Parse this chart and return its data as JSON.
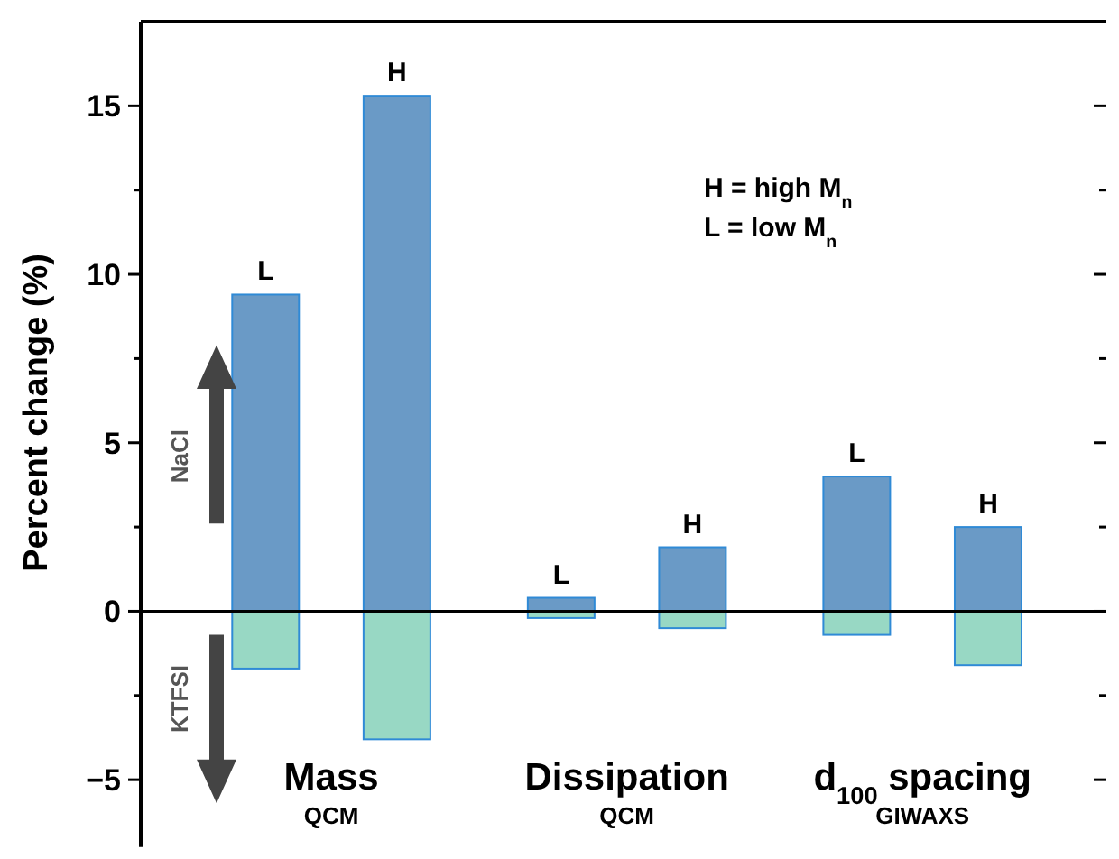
{
  "chart_data": {
    "type": "bar",
    "ylabel": "Percent change (%)",
    "categories": [
      "L",
      "H",
      "L",
      "H",
      "L",
      "H"
    ],
    "series": [
      {
        "name": "NaCl",
        "color": "#6a9ac6",
        "values": [
          9.4,
          15.3,
          0.4,
          1.9,
          4.0,
          2.5
        ]
      },
      {
        "name": "KTFSI",
        "color": "#98d8c4",
        "values": [
          -1.7,
          -3.8,
          -0.2,
          -0.5,
          -0.7,
          -1.6
        ]
      }
    ],
    "stacked": true,
    "ylim": [
      -7,
      17.5
    ],
    "yticks": [
      -5,
      {
        "value": -2.5,
        "label": null
      },
      0,
      {
        "value": 2.5,
        "label": null
      },
      5,
      {
        "value": 7.5,
        "label": null
      },
      10,
      {
        "value": 12.5,
        "label": null
      },
      15
    ],
    "annotations": [
      "Mass",
      "QCM",
      "Dissipation",
      "QCM",
      "d$_{100}$ spacing",
      "GIWAXS",
      "H = high M$_{n}$",
      "L = low M$_{n}$"
    ]
  }
}
